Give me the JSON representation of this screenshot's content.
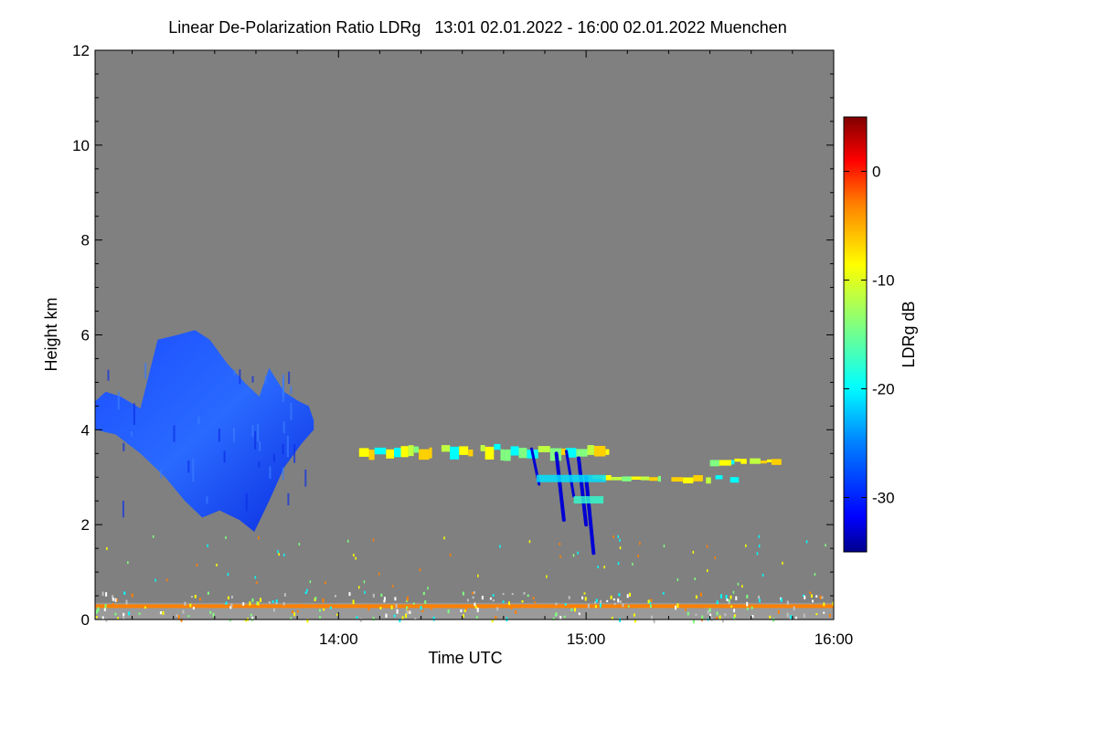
{
  "chart_data": {
    "type": "heatmap",
    "title": "Linear De-Polarization Ratio LDRg   13:01 02.01.2022 - 16:00 02.01.2022 Muenchen",
    "xlabel": "Time UTC",
    "ylabel": "Height km",
    "x_range_hours": [
      13.017,
      16.0
    ],
    "ylim": [
      0,
      12
    ],
    "x_ticks": [
      {
        "hour": 14.0,
        "label": "14:00"
      },
      {
        "hour": 15.0,
        "label": "15:00"
      },
      {
        "hour": 16.0,
        "label": "16:00"
      }
    ],
    "y_ticks": [
      0,
      2,
      4,
      6,
      8,
      10,
      12
    ],
    "no_data_color": "#808080",
    "colorbar": {
      "label": "LDRg dB",
      "range": [
        -35,
        5
      ],
      "ticks": [
        0,
        -10,
        -20,
        -30
      ],
      "colors": [
        "#00008c",
        "#0000ff",
        "#0080ff",
        "#00ffff",
        "#80ff80",
        "#ffff00",
        "#ff8000",
        "#ff0000",
        "#800000"
      ]
    },
    "features": [
      {
        "name": "ice cloud",
        "time_start": "13:01",
        "time_end": "13:55",
        "height_base_km": 1.8,
        "height_top_km": 6.1,
        "ldr_db": -30
      },
      {
        "name": "thin layer 1",
        "time_start": "14:05",
        "time_end": "15:05",
        "height_base_km": 3.4,
        "height_top_km": 3.7,
        "ldr_db": -12
      },
      {
        "name": "thin layer 2",
        "time_start": "15:00",
        "time_end": "15:35",
        "height_base_km": 2.9,
        "height_top_km": 3.05,
        "ldr_db": -12
      },
      {
        "name": "thin layer 3",
        "time_start": "15:30",
        "time_end": "15:45",
        "height_base_km": 3.25,
        "height_top_km": 3.4,
        "ldr_db": -14
      },
      {
        "name": "fall streaks",
        "time_start": "14:47",
        "time_end": "15:04",
        "height_base_km": 1.4,
        "height_top_km": 3.6,
        "ldr_db": -33
      },
      {
        "name": "boundary layer",
        "time_start": "13:01",
        "time_end": "16:00",
        "height_base_km": 0.0,
        "height_top_km": 0.35,
        "ldr_db": -3
      }
    ]
  }
}
